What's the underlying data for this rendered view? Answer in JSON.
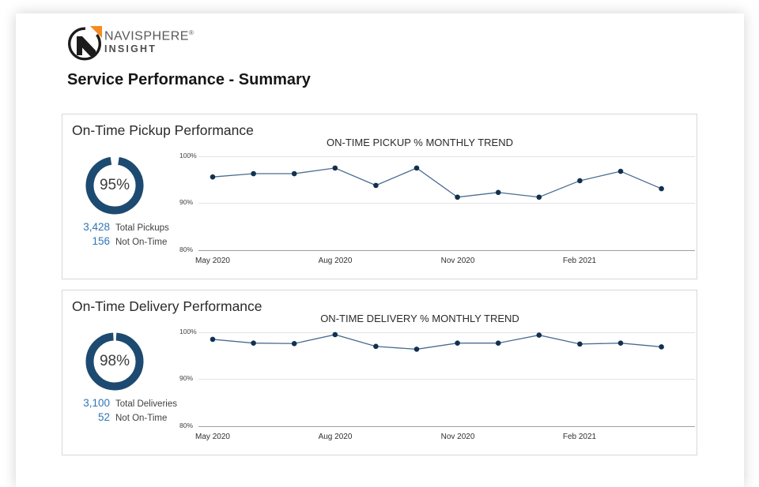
{
  "brand": {
    "name": "NAVISPHERE",
    "reg": "®",
    "sub": "INSIGHT"
  },
  "page_title": "Service Performance - Summary",
  "colors": {
    "donut_ring": "#1d4a70",
    "trend_line": "#4a6c92",
    "trend_point": "#13304f",
    "stat_value_blue": "#2e75b6",
    "logo_orange": "#f68b1f",
    "card_border": "#d8d8d8"
  },
  "cards": [
    {
      "title": "On-Time Pickup Performance",
      "donut": {
        "percent": 95,
        "display": "95%"
      },
      "stats": [
        {
          "value": "3,428",
          "label": "Total Pickups"
        },
        {
          "value": "156",
          "label": "Not On-Time"
        }
      ]
    },
    {
      "title": "On-Time Delivery Performance",
      "donut": {
        "percent": 98,
        "display": "98%"
      },
      "stats": [
        {
          "value": "3,100",
          "label": "Total Deliveries"
        },
        {
          "value": "52",
          "label": "Not On-Time"
        }
      ]
    }
  ],
  "chart_data": [
    {
      "type": "donut",
      "title": "On-Time Pickup %",
      "value": 95,
      "total_pickups": 3428,
      "not_on_time": 156
    },
    {
      "type": "line",
      "title": "ON-TIME PICKUP % MONTHLY TREND",
      "x": [
        "May 2020",
        "Jun 2020",
        "Jul 2020",
        "Aug 2020",
        "Sep 2020",
        "Oct 2020",
        "Nov 2020",
        "Dec 2020",
        "Jan 2021",
        "Feb 2021",
        "Mar 2021",
        "Apr 2021"
      ],
      "values": [
        95.6,
        96.3,
        96.3,
        97.5,
        93.8,
        97.5,
        91.3,
        92.3,
        91.3,
        94.8,
        96.8,
        93.1
      ],
      "ylim": [
        80,
        100
      ],
      "yticks": [
        "100%",
        "90%",
        "80%"
      ],
      "x_tick_labels": [
        "May 2020",
        "Aug 2020",
        "Nov 2020",
        "Feb 2021"
      ],
      "grid": true,
      "legend": "none"
    },
    {
      "type": "donut",
      "title": "On-Time Delivery %",
      "value": 98,
      "total_deliveries": 3100,
      "not_on_time": 52
    },
    {
      "type": "line",
      "title": "ON-TIME DELIVERY % MONTHLY TREND",
      "x": [
        "May 2020",
        "Jun 2020",
        "Jul 2020",
        "Aug 2020",
        "Sep 2020",
        "Oct 2020",
        "Nov 2020",
        "Dec 2020",
        "Jan 2021",
        "Feb 2021",
        "Mar 2021",
        "Apr 2021"
      ],
      "values": [
        98.5,
        97.7,
        97.6,
        99.5,
        97.0,
        96.4,
        97.7,
        97.7,
        99.4,
        97.5,
        97.7,
        96.9
      ],
      "ylim": [
        80,
        100
      ],
      "yticks": [
        "100%",
        "90%",
        "80%"
      ],
      "x_tick_labels": [
        "May 2020",
        "Aug 2020",
        "Nov 2020",
        "Feb 2021"
      ],
      "grid": true,
      "legend": "none"
    }
  ]
}
